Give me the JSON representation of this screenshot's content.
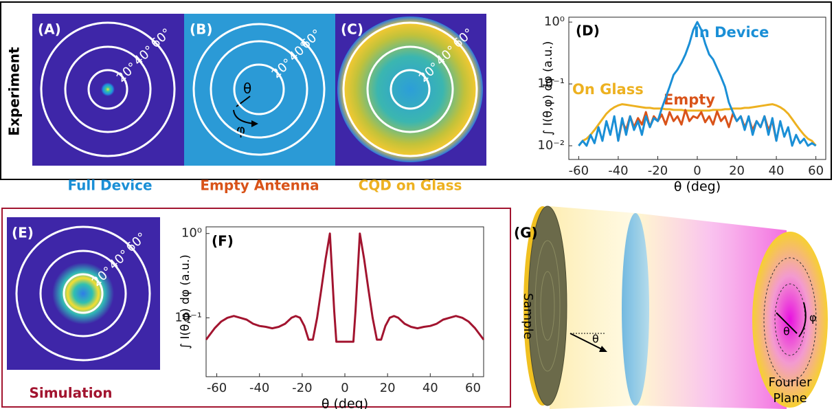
{
  "chart_data": [
    {
      "type": "line",
      "label": "(D)",
      "ylabel": "∫ I(θ,φ) dφ (a.u.)",
      "xlabel": "θ (deg)",
      "log_y": true,
      "xlim": [
        -65,
        65
      ],
      "ylim": [
        0.006,
        1.2
      ],
      "xticks": [
        -60,
        -40,
        -20,
        0,
        20,
        40,
        60
      ],
      "yticks": [
        {
          "value": 1,
          "label": "10⁰"
        },
        {
          "value": 0.1,
          "label": "10⁻¹"
        },
        {
          "value": 0.01,
          "label": "10⁻²"
        }
      ],
      "x": [
        -60,
        -58,
        -56,
        -54,
        -52,
        -50,
        -48,
        -46,
        -44,
        -42,
        -40,
        -38,
        -36,
        -34,
        -32,
        -30,
        -28,
        -26,
        -24,
        -22,
        -20,
        -18,
        -16,
        -14,
        -12,
        -10,
        -8,
        -6,
        -4,
        -2,
        0,
        2,
        4,
        6,
        8,
        10,
        12,
        14,
        16,
        18,
        20,
        22,
        24,
        26,
        28,
        30,
        32,
        34,
        36,
        38,
        40,
        42,
        44,
        46,
        48,
        50,
        52,
        54,
        56,
        58,
        60
      ],
      "series": [
        {
          "name": "On Glass",
          "color": "#edb120",
          "values": [
            0.01,
            0.012,
            0.013,
            0.015,
            0.018,
            0.022,
            0.027,
            0.033,
            0.038,
            0.042,
            0.045,
            0.047,
            0.046,
            0.045,
            0.044,
            0.043,
            0.042,
            0.041,
            0.041,
            0.04,
            0.04,
            0.04,
            0.039,
            0.039,
            0.038,
            0.038,
            0.038,
            0.037,
            0.037,
            0.037,
            0.037,
            0.037,
            0.037,
            0.037,
            0.038,
            0.038,
            0.038,
            0.039,
            0.039,
            0.04,
            0.04,
            0.04,
            0.041,
            0.041,
            0.042,
            0.043,
            0.044,
            0.045,
            0.046,
            0.047,
            0.045,
            0.042,
            0.038,
            0.033,
            0.027,
            0.022,
            0.018,
            0.015,
            0.013,
            0.012,
            0.01
          ]
        },
        {
          "name": "Empty",
          "color": "#d95319",
          "values": [
            null,
            null,
            null,
            null,
            null,
            null,
            null,
            null,
            null,
            null,
            0.012,
            0.025,
            0.018,
            0.03,
            0.02,
            0.028,
            0.022,
            0.035,
            0.02,
            0.03,
            0.025,
            0.032,
            0.022,
            0.035,
            0.025,
            0.03,
            0.022,
            0.038,
            0.025,
            0.03,
            0.028,
            0.035,
            0.024,
            0.03,
            0.022,
            0.036,
            0.025,
            0.03,
            0.02,
            0.033,
            0.025,
            0.03,
            0.02,
            0.028,
            0.018,
            0.025,
            0.02,
            0.03,
            0.018,
            0.025,
            0.012,
            null,
            null,
            null,
            null,
            null,
            null,
            null,
            null,
            null,
            null
          ]
        },
        {
          "name": "In Device",
          "color": "#1a8fd6",
          "values": [
            0.01,
            0.012,
            0.01,
            0.015,
            0.011,
            0.02,
            0.012,
            0.025,
            0.015,
            0.03,
            0.012,
            0.028,
            0.015,
            0.03,
            0.018,
            0.025,
            0.015,
            0.03,
            0.02,
            0.028,
            0.025,
            0.04,
            0.06,
            0.09,
            0.14,
            0.17,
            0.22,
            0.3,
            0.45,
            0.75,
            1,
            0.75,
            0.45,
            0.3,
            0.25,
            0.18,
            0.13,
            0.09,
            0.05,
            0.035,
            0.025,
            0.03,
            0.018,
            0.03,
            0.015,
            0.025,
            0.02,
            0.03,
            0.015,
            0.028,
            0.012,
            0.025,
            0.014,
            0.02,
            0.01,
            0.015,
            0.011,
            0.013,
            0.01,
            0.011,
            0.01
          ]
        }
      ]
    },
    {
      "type": "line",
      "label": "(F)",
      "ylabel": "∫ I(θ,φ) dφ (a.u.)",
      "xlabel": "θ (deg)",
      "log_y": true,
      "xlim": [
        -65,
        65
      ],
      "ylim": [
        0.02,
        1.2
      ],
      "xticks": [
        -60,
        -40,
        -20,
        0,
        20,
        40,
        60
      ],
      "yticks": [
        {
          "value": 1,
          "label": "10⁰"
        },
        {
          "value": 0.1,
          "label": "10⁻¹"
        }
      ],
      "x": [
        -65,
        -61,
        -58,
        -55,
        -52,
        -49,
        -46,
        -43,
        -40,
        -37,
        -34,
        -31,
        -28,
        -25,
        -23,
        -21,
        -19,
        -17,
        -15,
        -13,
        -11,
        -9,
        -7,
        -5,
        -4,
        -2,
        0,
        2,
        4,
        5,
        7,
        9,
        11,
        13,
        15,
        17,
        19,
        21,
        23,
        25,
        28,
        31,
        34,
        37,
        40,
        43,
        46,
        49,
        52,
        55,
        58,
        61,
        65
      ],
      "series": [
        {
          "color": "#a2142f",
          "values": [
            0.055,
            0.075,
            0.09,
            0.1,
            0.105,
            0.1,
            0.095,
            0.085,
            0.08,
            0.078,
            0.075,
            0.078,
            0.085,
            0.1,
            0.105,
            0.1,
            0.08,
            0.055,
            0.055,
            0.1,
            0.22,
            0.5,
            1,
            0.12,
            0.052,
            0.052,
            0.052,
            0.052,
            0.052,
            0.12,
            1,
            0.5,
            0.22,
            0.1,
            0.055,
            0.055,
            0.08,
            0.1,
            0.105,
            0.1,
            0.085,
            0.078,
            0.075,
            0.078,
            0.08,
            0.085,
            0.095,
            0.1,
            0.105,
            0.1,
            0.09,
            0.075,
            0.055
          ]
        }
      ]
    }
  ],
  "panels": {
    "experiment": "Experiment",
    "rings": [
      "20°",
      "40°",
      "60°"
    ],
    "A": {
      "label": "(A)",
      "caption": "Full Device",
      "caption_color": "#1a8fd6"
    },
    "B": {
      "label": "(B)",
      "caption": "Empty Antenna",
      "caption_color": "#d95319",
      "theta": "θ",
      "phi": "φ"
    },
    "C": {
      "label": "(C)",
      "caption": "CQD on Glass",
      "caption_color": "#edb120"
    },
    "E": {
      "label": "(E)",
      "caption": "Simulation",
      "caption_color": "#a2142f"
    },
    "G": {
      "label": "(G)",
      "sample": "Sample",
      "fourier": [
        "Fourier",
        "Plane"
      ],
      "theta": "θ",
      "phi": "φ"
    }
  }
}
